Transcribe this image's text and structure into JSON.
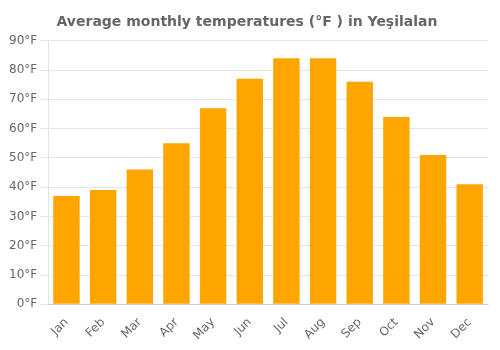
{
  "chart_data": {
    "type": "bar",
    "title": "Average monthly temperatures (°F ) in Yeşilalan",
    "categories": [
      "Jan",
      "Feb",
      "Mar",
      "Apr",
      "May",
      "Jun",
      "Jul",
      "Aug",
      "Sep",
      "Oct",
      "Nov",
      "Dec"
    ],
    "values": [
      37,
      39,
      46,
      55,
      67,
      77,
      84,
      84,
      76,
      64,
      51,
      41
    ],
    "color": "#FFA500",
    "ylim": [
      0,
      90
    ],
    "yticks": [
      {
        "value": 0,
        "label": "0°F"
      },
      {
        "value": 10,
        "label": "10°F"
      },
      {
        "value": 20,
        "label": "20°F"
      },
      {
        "value": 30,
        "label": "30°F"
      },
      {
        "value": 40,
        "label": "40°F"
      },
      {
        "value": 50,
        "label": "50°F"
      },
      {
        "value": 60,
        "label": "60°F"
      },
      {
        "value": 70,
        "label": "70°F"
      },
      {
        "value": 80,
        "label": "80°F"
      },
      {
        "value": 90,
        "label": "90°F"
      }
    ],
    "grid": true
  }
}
